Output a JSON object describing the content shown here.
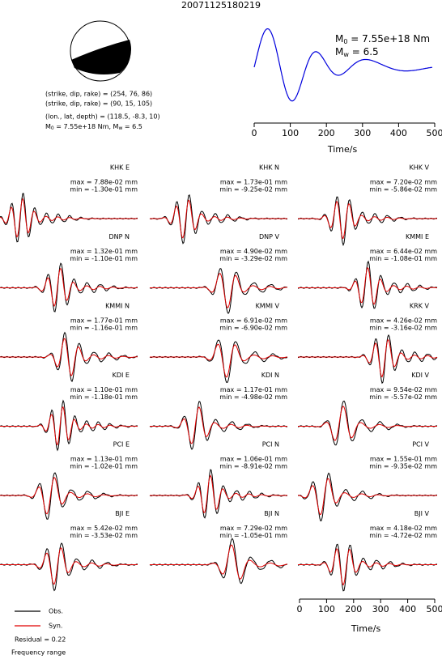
{
  "title": "20071125180219",
  "mechanism": {
    "lines": [
      "(strike, dip, rake) = (254, 76, 86)",
      "(strike, dip, rake) = (90, 15, 105)",
      "(lon., lat, depth) = (118.5, -8.3, 10)"
    ],
    "moment": {
      "symbol": "M",
      "sub": "0",
      "text": " = 7.55e+18 Nm, "
    },
    "magnitude": {
      "symbol": "M",
      "sub": "w",
      "text": " = 6.5"
    }
  },
  "stf": {
    "moment": {
      "symbol": "M",
      "sub": "0",
      "text": " = 7.55e+18 Nm"
    },
    "magnitude": {
      "symbol": "M",
      "sub": "w",
      "text": " = 6.5"
    },
    "xlim": [
      0,
      500
    ],
    "xticks": [
      0,
      100,
      200,
      300,
      400,
      500
    ],
    "xlabel": "Time/s"
  },
  "traces": [
    {
      "label": "KHK E",
      "max": "max = 7.88e-02 mm",
      "min": "min = -1.30e-01 mm"
    },
    {
      "label": "KHK N",
      "max": "max = 1.73e-01 mm",
      "min": "min = -9.25e-02 mm"
    },
    {
      "label": "KHK V",
      "max": "max = 7.20e-02 mm",
      "min": "min = -5.86e-02 mm"
    },
    {
      "label": "DNP N",
      "max": "max = 1.32e-01 mm",
      "min": "min = -1.10e-01 mm"
    },
    {
      "label": "DNP V",
      "max": "max = 4.90e-02 mm",
      "min": "min = -3.29e-02 mm"
    },
    {
      "label": "KMMI E",
      "max": "max = 6.44e-02 mm",
      "min": "min = -1.08e-01 mm"
    },
    {
      "label": "KMMI N",
      "max": "max = 1.77e-01 mm",
      "min": "min = -1.16e-01 mm"
    },
    {
      "label": "KMMI V",
      "max": "max = 6.91e-02 mm",
      "min": "min = -6.90e-02 mm"
    },
    {
      "label": "KRK V",
      "max": "max = 4.26e-02 mm",
      "min": "min = -3.16e-02 mm"
    },
    {
      "label": "KDI E",
      "max": "max = 1.10e-01 mm",
      "min": "min = -1.18e-01 mm"
    },
    {
      "label": "KDI N",
      "max": "max = 1.17e-01 mm",
      "min": "min = -4.98e-02 mm"
    },
    {
      "label": "KDI V",
      "max": "max = 9.54e-02 mm",
      "min": "min = -5.57e-02 mm"
    },
    {
      "label": "PCI E",
      "max": "max = 1.13e-01 mm",
      "min": "min = -1.02e-01 mm"
    },
    {
      "label": "PCI N",
      "max": "max = 1.06e-01 mm",
      "min": "min = -8.91e-02 mm"
    },
    {
      "label": "PCI V",
      "max": "max = 1.55e-01 mm",
      "min": "min = -9.35e-02 mm"
    },
    {
      "label": "BJI E",
      "max": "max = 5.42e-02 mm",
      "min": "min = -3.53e-02 mm"
    },
    {
      "label": "BJI N",
      "max": "max = 7.29e-02 mm",
      "min": "min = -1.05e-01 mm"
    },
    {
      "label": "BJI V",
      "max": "max = 4.18e-02 mm",
      "min": "min = -4.72e-02 mm"
    }
  ],
  "trace_axis": {
    "xlim": [
      0,
      500
    ],
    "xticks": [
      0,
      100,
      200,
      300,
      400,
      500
    ],
    "xlabel": "Time/s"
  },
  "legend": [
    {
      "name": "Obs.",
      "color": "#000000"
    },
    {
      "name": "Syn.",
      "color": "#e00000"
    }
  ],
  "residual": "Residual = 0.22",
  "frequency": "Frequency range"
}
